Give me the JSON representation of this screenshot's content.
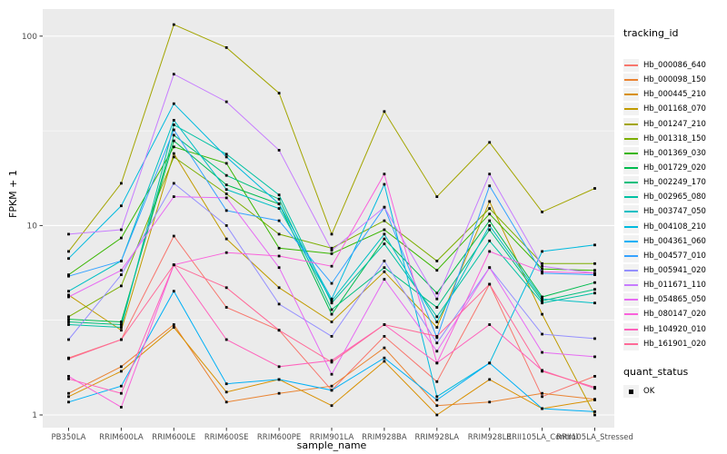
{
  "chart_data": {
    "type": "line",
    "title": "",
    "xlabel": "sample_name",
    "ylabel": "FPKM + 1",
    "y_scale": "log10",
    "ylim": [
      0.9,
      140
    ],
    "grid": true,
    "y_ticks": [
      1,
      10,
      100
    ],
    "y_tick_labels": [
      "1",
      "10",
      "100"
    ],
    "y_minor_ticks": [
      3.162,
      31.623
    ],
    "legend_position": "right",
    "point_marker": "black-square",
    "categories": [
      "PB350LA",
      "RRIM600LA",
      "RRIM600LE",
      "RRIM600SE",
      "RRIM600PE",
      "RRIM901LA",
      "RRIM928BA",
      "RRIM928LA",
      "RRIM928LE",
      "RRII105LA_Control",
      "RRII105LA_Stressed"
    ],
    "series": [
      {
        "name": "Hb_000086_640",
        "color": "#F8766D",
        "values": [
          2.0,
          2.5,
          8.8,
          3.7,
          2.8,
          1.35,
          2.6,
          1.5,
          4.9,
          1.25,
          1.6
        ]
      },
      {
        "name": "Hb_000098_150",
        "color": "#EA8331",
        "values": [
          1.3,
          1.8,
          3.0,
          1.17,
          1.3,
          1.42,
          2.26,
          1.12,
          1.17,
          1.3,
          1.21
        ]
      },
      {
        "name": "Hb_000445_210",
        "color": "#D89000",
        "values": [
          1.25,
          1.7,
          2.9,
          1.32,
          1.54,
          1.12,
          1.92,
          1.0,
          1.54,
          1.08,
          1.2
        ]
      },
      {
        "name": "Hb_001168_070",
        "color": "#C09B00",
        "values": [
          4.3,
          2.8,
          24,
          8.5,
          4.7,
          3.1,
          5.7,
          2.9,
          13.4,
          3.4,
          1.0
        ]
      },
      {
        "name": "Hb_001247_210",
        "color": "#A3A500",
        "values": [
          7.3,
          16.7,
          115,
          87,
          50,
          9.0,
          40,
          14.2,
          27.5,
          11.8,
          15.7
        ]
      },
      {
        "name": "Hb_001318_150",
        "color": "#7CAE00",
        "values": [
          3.3,
          4.8,
          23,
          14.7,
          9.0,
          7.6,
          10.6,
          6.5,
          12.3,
          6.3,
          6.3
        ]
      },
      {
        "name": "Hb_001369_030",
        "color": "#39B600",
        "values": [
          5.5,
          8.6,
          26,
          21.3,
          7.6,
          7.1,
          9.5,
          5.8,
          11.5,
          5.9,
          5.8
        ]
      },
      {
        "name": "Hb_001729_020",
        "color": "#00BB4E",
        "values": [
          3.2,
          3.1,
          28,
          16.4,
          13.0,
          3.4,
          8.5,
          4.4,
          10.6,
          4.2,
          5.0
        ]
      },
      {
        "name": "Hb_002249_170",
        "color": "#00BF7D",
        "values": [
          3.1,
          3.0,
          30,
          18.4,
          13.8,
          3.6,
          6.0,
          3.7,
          9.5,
          4.0,
          4.6
        ]
      },
      {
        "name": "Hb_002965_080",
        "color": "#00C1A3",
        "values": [
          3.0,
          2.9,
          34,
          23.8,
          14.5,
          3.9,
          8.0,
          3.3,
          8.3,
          3.9,
          4.4
        ]
      },
      {
        "name": "Hb_003747_050",
        "color": "#00BFC4",
        "values": [
          4.5,
          6.5,
          36,
          15.5,
          12.3,
          4.0,
          9.0,
          3.1,
          10.0,
          4.1,
          3.9
        ]
      },
      {
        "name": "Hb_004108_210",
        "color": "#00BADE",
        "values": [
          6.7,
          12.7,
          44,
          23,
          13.0,
          4.1,
          16.5,
          1.25,
          1.88,
          7.3,
          7.9
        ]
      },
      {
        "name": "Hb_004361_060",
        "color": "#00B0F6",
        "values": [
          1.17,
          1.42,
          4.5,
          1.46,
          1.54,
          1.35,
          2.0,
          1.2,
          1.88,
          1.08,
          1.04
        ]
      },
      {
        "name": "Hb_004577_010",
        "color": "#35A2FF",
        "values": [
          5.4,
          6.5,
          32,
          12,
          10.6,
          4.95,
          12.5,
          2.56,
          16.2,
          5.6,
          5.5
        ]
      },
      {
        "name": "Hb_005941_020",
        "color": "#9590FF",
        "values": [
          2.5,
          5.5,
          16.7,
          10,
          3.85,
          2.6,
          6.5,
          2.4,
          6.0,
          2.67,
          2.53
        ]
      },
      {
        "name": "Hb_011671_110",
        "color": "#C77CFF",
        "values": [
          9.0,
          9.5,
          63,
          45,
          25,
          7.4,
          12.5,
          4.1,
          18.7,
          6.1,
          5.6
        ]
      },
      {
        "name": "Hb_054865_050",
        "color": "#E76BF3",
        "values": [
          4.2,
          5.8,
          14.2,
          14.0,
          6.0,
          1.64,
          5.2,
          2.17,
          6.0,
          2.14,
          2.03
        ]
      },
      {
        "name": "Hb_080147_020",
        "color": "#FA62DB",
        "values": [
          1.6,
          1.1,
          6.2,
          7.2,
          6.9,
          6.1,
          18.7,
          1.88,
          7.3,
          5.7,
          5.6
        ]
      },
      {
        "name": "Hb_104920_010",
        "color": "#FF62BC",
        "values": [
          1.55,
          1.3,
          6.2,
          2.5,
          1.8,
          1.94,
          3.0,
          1.88,
          3.0,
          1.72,
          1.38
        ]
      },
      {
        "name": "Hb_161901_020",
        "color": "#FF6A98",
        "values": [
          1.98,
          2.5,
          6.2,
          4.7,
          2.8,
          1.9,
          3.0,
          2.6,
          4.9,
          1.7,
          1.4
        ]
      }
    ]
  },
  "legend": {
    "tracking_title": "tracking_id",
    "quant_title": "quant_status",
    "quant_item": "OK"
  },
  "style_colors": {
    "panel_background": "#EBEBEB",
    "gridline": "#FFFFFF",
    "tick_label": "#4D4D4D",
    "tick_mark": "#333333",
    "legend_key_background": "#F2F2F2",
    "point": "#000000"
  }
}
